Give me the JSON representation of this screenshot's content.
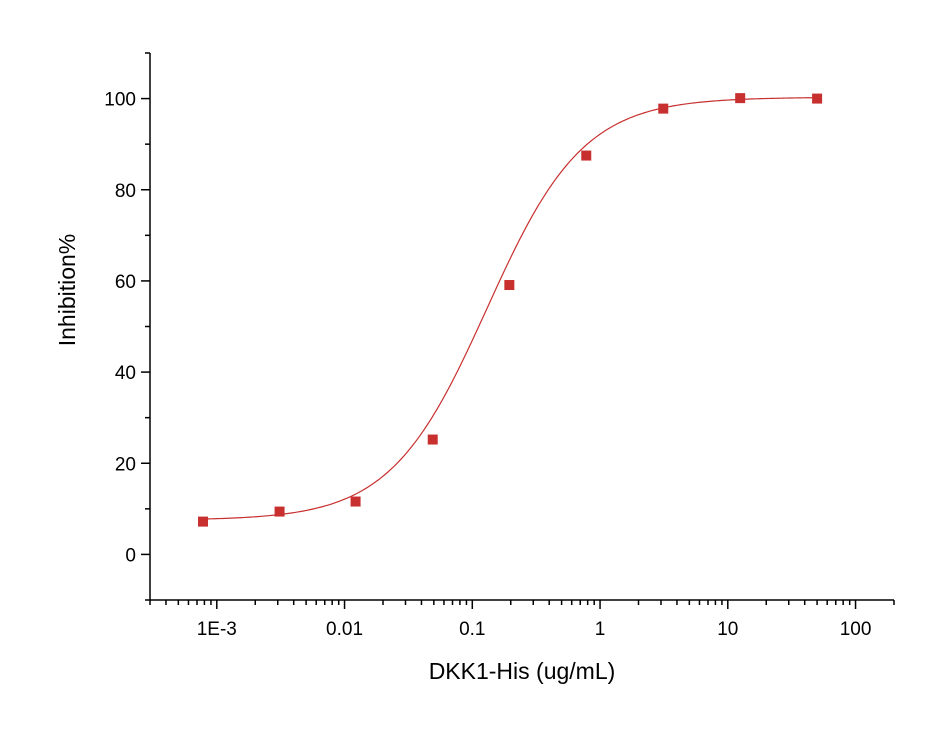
{
  "chart_data": {
    "type": "scatter",
    "title": "",
    "xlabel": "DKK1-His (ug/mL)",
    "ylabel": "Inhibition%",
    "x_scale": "log",
    "xlim": [
      0.0003,
      200
    ],
    "ylim": [
      -10,
      110
    ],
    "x_ticks": [
      {
        "value": 0.001,
        "label": "1E-3"
      },
      {
        "value": 0.01,
        "label": "0.01"
      },
      {
        "value": 0.1,
        "label": "0.1"
      },
      {
        "value": 1,
        "label": "1"
      },
      {
        "value": 10,
        "label": "10"
      },
      {
        "value": 100,
        "label": "100"
      }
    ],
    "y_ticks": [
      {
        "value": 0,
        "label": "0"
      },
      {
        "value": 20,
        "label": "20"
      },
      {
        "value": 40,
        "label": "40"
      },
      {
        "value": 60,
        "label": "60"
      },
      {
        "value": 80,
        "label": "80"
      },
      {
        "value": 100,
        "label": "100"
      }
    ],
    "grid": false,
    "legend": "none",
    "series": [
      {
        "points": [
          {
            "x": 0.00078,
            "y": 7.2
          },
          {
            "x": 0.0031,
            "y": 9.4
          },
          {
            "x": 0.0122,
            "y": 11.6
          },
          {
            "x": 0.049,
            "y": 25.2
          },
          {
            "x": 0.195,
            "y": 59.1
          },
          {
            "x": 0.78,
            "y": 87.5
          },
          {
            "x": 3.125,
            "y": 97.8
          },
          {
            "x": 12.5,
            "y": 100.1
          },
          {
            "x": 50,
            "y": 100.0
          }
        ],
        "marker": "square",
        "color": "#c8302f"
      }
    ],
    "fit_curve": {
      "model": "4PL",
      "bottom": 7.5,
      "top": 100.3,
      "ec50": 0.13,
      "hill": 1.15,
      "color": "#c8302f"
    }
  }
}
